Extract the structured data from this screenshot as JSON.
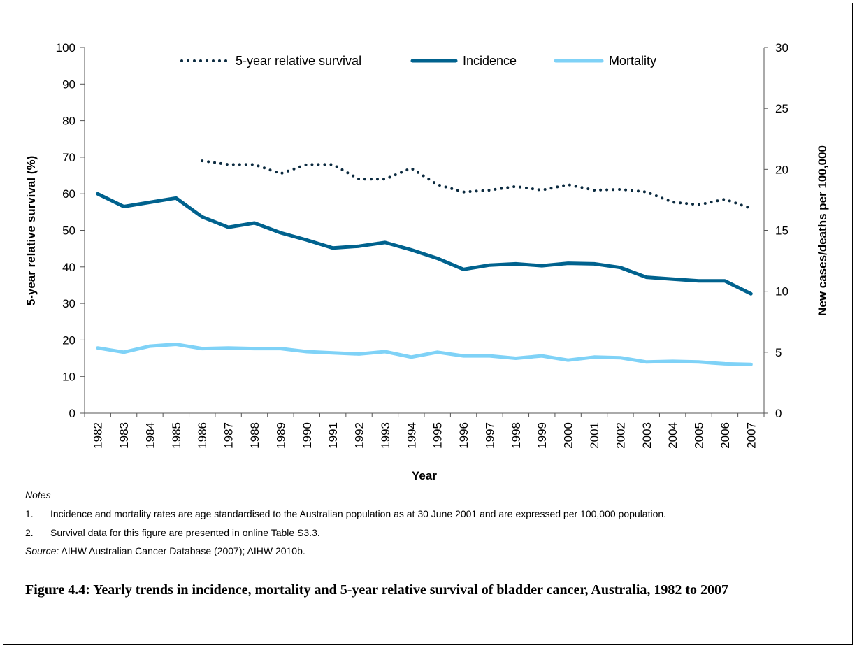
{
  "chart_data": {
    "type": "line",
    "xlabel": "Year",
    "ylabel_left": "5-year relative survival (%)",
    "ylabel_right": "New cases/deaths per 100,000",
    "ylim_left": [
      0,
      100
    ],
    "ylim_right": [
      0,
      30
    ],
    "yticks_left": [
      "0",
      "10",
      "20",
      "30",
      "40",
      "50",
      "60",
      "70",
      "80",
      "90",
      "100"
    ],
    "yticks_right": [
      "0",
      "5",
      "10",
      "15",
      "20",
      "25",
      "30"
    ],
    "x": [
      "1982",
      "1983",
      "1984",
      "1985",
      "1986",
      "1987",
      "1988",
      "1989",
      "1990",
      "1991",
      "1992",
      "1993",
      "1994",
      "1995",
      "1996",
      "1997",
      "1998",
      "1999",
      "2000",
      "2001",
      "2002",
      "2003",
      "2004",
      "2005",
      "2006",
      "2007"
    ],
    "legend_position": "top",
    "grid": false,
    "series": [
      {
        "name": "5-year relative survival",
        "axis": "left",
        "style": "dotted",
        "color": "#0B2A3F",
        "values": [
          null,
          null,
          null,
          null,
          69.0,
          68.0,
          68.0,
          65.5,
          68.0,
          68.0,
          64.0,
          64.0,
          67.0,
          62.5,
          60.5,
          61.0,
          62.0,
          61.0,
          62.5,
          61.0,
          61.2,
          60.5,
          57.7,
          57.0,
          58.5,
          56.0
        ]
      },
      {
        "name": "Incidence",
        "axis": "right",
        "style": "solid",
        "color": "#00628E",
        "values": [
          18.0,
          16.95,
          17.3,
          17.65,
          16.1,
          15.25,
          15.6,
          14.8,
          14.2,
          13.55,
          13.7,
          14.0,
          13.4,
          12.7,
          11.8,
          12.15,
          12.25,
          12.1,
          12.3,
          12.25,
          11.95,
          11.15,
          11.0,
          10.85,
          10.85,
          9.8
        ]
      },
      {
        "name": "Mortality",
        "axis": "right",
        "style": "solid",
        "color": "#7FD2F7",
        "values": [
          5.35,
          5.0,
          5.5,
          5.65,
          5.3,
          5.35,
          5.3,
          5.3,
          5.05,
          4.95,
          4.85,
          5.05,
          4.6,
          5.0,
          4.7,
          4.7,
          4.5,
          4.7,
          4.35,
          4.6,
          4.55,
          4.2,
          4.25,
          4.2,
          4.05,
          4.0
        ]
      }
    ]
  },
  "notes": {
    "heading": "Notes",
    "items": [
      {
        "num": "1.",
        "text": "Incidence and mortality rates are age standardised to the Australian population as at 30 June 2001 and are expressed per 100,000 population."
      },
      {
        "num": "2.",
        "text": "Survival data for this figure are presented in online Table S3.3."
      }
    ],
    "source_label": "Source:",
    "source_text": " AIHW Australian Cancer Database (2007); AIHW 2010b."
  },
  "caption": "Figure 4.4: Yearly trends in incidence, mortality and 5-year relative survival of bladder cancer, Australia, 1982 to 2007"
}
